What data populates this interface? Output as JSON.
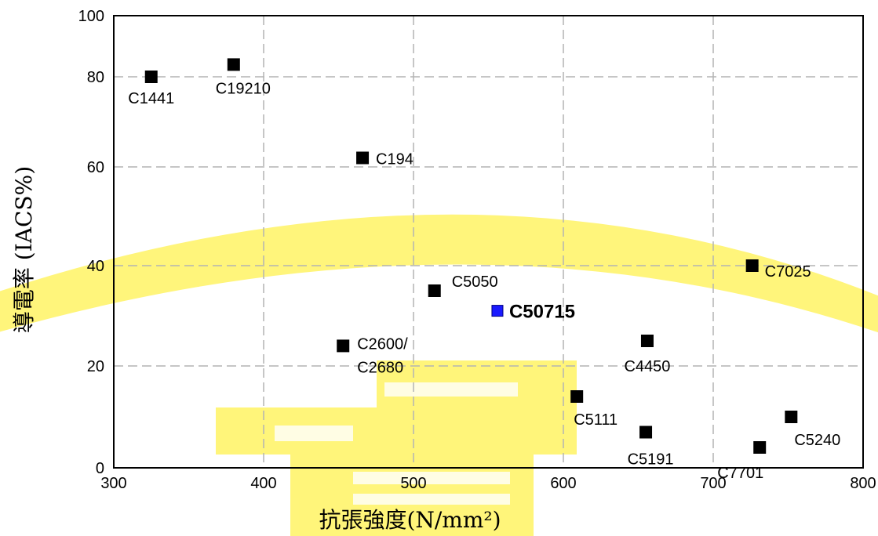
{
  "chart_data": {
    "type": "scatter",
    "xlabel": "抗張強度(N/mm²)",
    "ylabel": "導電率 (IACS%)",
    "xlim": [
      300,
      800
    ],
    "ylim": [
      0,
      100
    ],
    "x_ticks": [
      "300",
      "400",
      "500",
      "600",
      "700",
      "800"
    ],
    "y_ticks": [
      "0",
      "20",
      "40",
      "60",
      "80",
      "100"
    ],
    "grid": true,
    "points": [
      {
        "label": "C1441",
        "x": 325,
        "y": 80
      },
      {
        "label": "C19210",
        "x": 380,
        "y": 84
      },
      {
        "label": "C194",
        "x": 466,
        "y": 62
      },
      {
        "label": "C5050",
        "x": 514,
        "y": 35
      },
      {
        "label": "C50715",
        "x": 556,
        "y": 31,
        "highlight": true
      },
      {
        "label": "C2600/C2680",
        "x": 453,
        "y": 24
      },
      {
        "label": "C7025",
        "x": 726,
        "y": 40
      },
      {
        "label": "C4450",
        "x": 656,
        "y": 25
      },
      {
        "label": "C5111",
        "x": 609,
        "y": 14
      },
      {
        "label": "C5191",
        "x": 655,
        "y": 7
      },
      {
        "label": "C5240",
        "x": 752,
        "y": 10
      },
      {
        "label": "C7701",
        "x": 731,
        "y": 4
      }
    ],
    "colors": {
      "point": "#000000",
      "highlight": "#1a1aff",
      "watermark": "#fff35a",
      "grid": "#b3b3b3"
    }
  }
}
